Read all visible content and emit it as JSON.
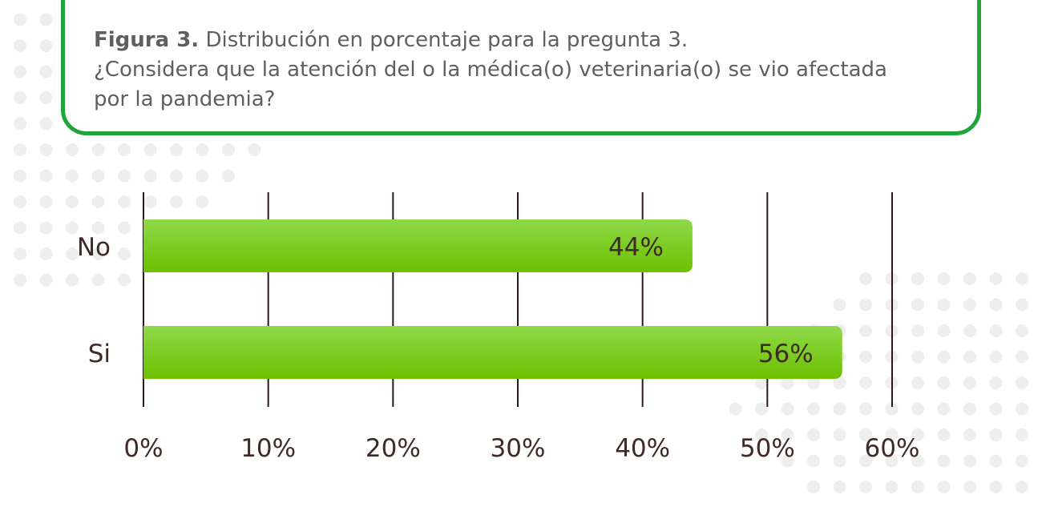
{
  "caption": {
    "label": "Figura 3.",
    "line1": " Distribución en porcentaje para la pregunta 3.",
    "line2": "¿Considera que la atención del o la médica(o) veterinaria(o) se vio afectada",
    "line3": "por la pandemia?"
  },
  "colors": {
    "bar_top": "#8fd94a",
    "bar_bottom": "#6cc000",
    "frame": "#1fa53a",
    "gridline": "#2b1a17",
    "text": "#3f2a26",
    "dots": "#eeeeee"
  },
  "chart_data": {
    "type": "bar",
    "orientation": "horizontal",
    "categories": [
      "No",
      "Si"
    ],
    "values": [
      44,
      56
    ],
    "data_labels": [
      "44%",
      "56%"
    ],
    "xlim": [
      0,
      60
    ],
    "xticks": [
      0,
      10,
      20,
      30,
      40,
      50,
      60
    ],
    "xtick_labels": [
      "0%",
      "10%",
      "20%",
      "30%",
      "40%",
      "50%",
      "60%"
    ],
    "grid": true,
    "title": "",
    "xlabel": "",
    "ylabel": ""
  }
}
